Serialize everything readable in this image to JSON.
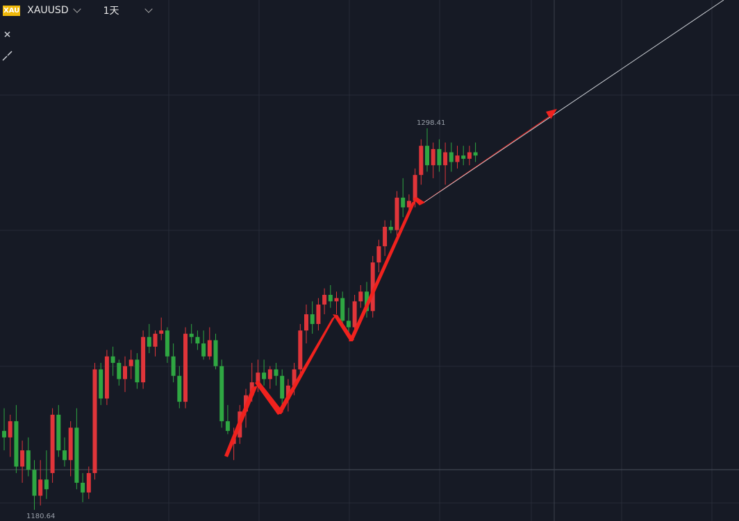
{
  "header": {
    "icon": "XAU",
    "symbol": "XAUUSD",
    "interval": "1天"
  },
  "chart_data": {
    "type": "candlestick",
    "up_color": "#e0353a",
    "down_color": "#2fa742",
    "ylim": [
      1177.2,
      1338.0
    ],
    "open": [
      1205,
      1203,
      1208,
      1194,
      1199,
      1193,
      1185,
      1190,
      1192,
      1210,
      1199,
      1196,
      1206,
      1189,
      1186,
      1192,
      1224,
      1215,
      1228,
      1226,
      1221,
      1225,
      1227,
      1220,
      1234,
      1231,
      1235,
      1236,
      1228,
      1222,
      1214,
      1235,
      1234,
      1232,
      1228,
      1233,
      1225,
      1208,
      1201,
      1203,
      1211,
      1216,
      1220,
      1223,
      1221,
      1224,
      1222,
      1215,
      1219,
      1224,
      1236,
      1241,
      1238,
      1244,
      1247,
      1245,
      1246,
      1239,
      1237,
      1245,
      1248,
      1242,
      1257,
      1262,
      1268,
      1267,
      1277,
      1274,
      1276,
      1284,
      1293,
      1287,
      1292,
      1287,
      1291,
      1288,
      1290,
      1289,
      1291
    ],
    "high": [
      1212,
      1210,
      1213,
      1202,
      1203,
      1196,
      1196,
      1199,
      1212,
      1213,
      1203,
      1208,
      1212,
      1192,
      1194,
      1226,
      1226,
      1230,
      1231,
      1227,
      1228,
      1230,
      1229,
      1236,
      1238,
      1236,
      1240,
      1237,
      1232,
      1225,
      1237,
      1238,
      1236,
      1236,
      1237,
      1235,
      1227,
      1213,
      1206,
      1213,
      1218,
      1226,
      1227,
      1227,
      1225,
      1226,
      1224,
      1221,
      1226,
      1238,
      1244,
      1245,
      1246,
      1249,
      1250,
      1248,
      1248,
      1243,
      1247,
      1250,
      1251,
      1259,
      1264,
      1270,
      1270,
      1279,
      1283,
      1278,
      1286,
      1295,
      1298.41,
      1294,
      1295,
      1294,
      1294,
      1293,
      1293,
      1293,
      1294
    ],
    "low": [
      1199,
      1197,
      1192,
      1189,
      1191,
      1180.64,
      1182,
      1184,
      1189,
      1197,
      1194,
      1191,
      1187,
      1183,
      1184,
      1190,
      1213,
      1213,
      1222,
      1219,
      1217,
      1221,
      1218,
      1218,
      1229,
      1228,
      1233,
      1226,
      1220,
      1212,
      1212,
      1232,
      1230,
      1227,
      1227,
      1224,
      1206,
      1204,
      1196,
      1201,
      1206,
      1214,
      1217,
      1219,
      1218,
      1219,
      1213,
      1211,
      1216,
      1221,
      1232,
      1235,
      1236,
      1241,
      1243,
      1241,
      1237,
      1234,
      1235,
      1243,
      1240,
      1240,
      1254,
      1259,
      1266,
      1265,
      1271,
      1272,
      1274,
      1281,
      1285,
      1283,
      1285,
      1281,
      1285,
      1286,
      1287,
      1287,
      1288
    ],
    "close": [
      1203,
      1208,
      1194,
      1199,
      1193,
      1185,
      1190,
      1187,
      1210,
      1199,
      1196,
      1206,
      1189,
      1186,
      1192,
      1224,
      1215,
      1228,
      1226,
      1221,
      1225,
      1227,
      1220,
      1234,
      1231,
      1235,
      1236,
      1228,
      1222,
      1214,
      1235,
      1234,
      1232,
      1228,
      1233,
      1225,
      1208,
      1205,
      1203,
      1211,
      1216,
      1220,
      1223,
      1221,
      1224,
      1222,
      1215,
      1219,
      1224,
      1236,
      1241,
      1238,
      1244,
      1247,
      1245,
      1246,
      1239,
      1237,
      1245,
      1248,
      1242,
      1257,
      1262,
      1268,
      1267,
      1277,
      1274,
      1276,
      1284,
      1293,
      1287,
      1292,
      1287,
      1291,
      1288,
      1290,
      1289,
      1291,
      1290
    ]
  }
}
